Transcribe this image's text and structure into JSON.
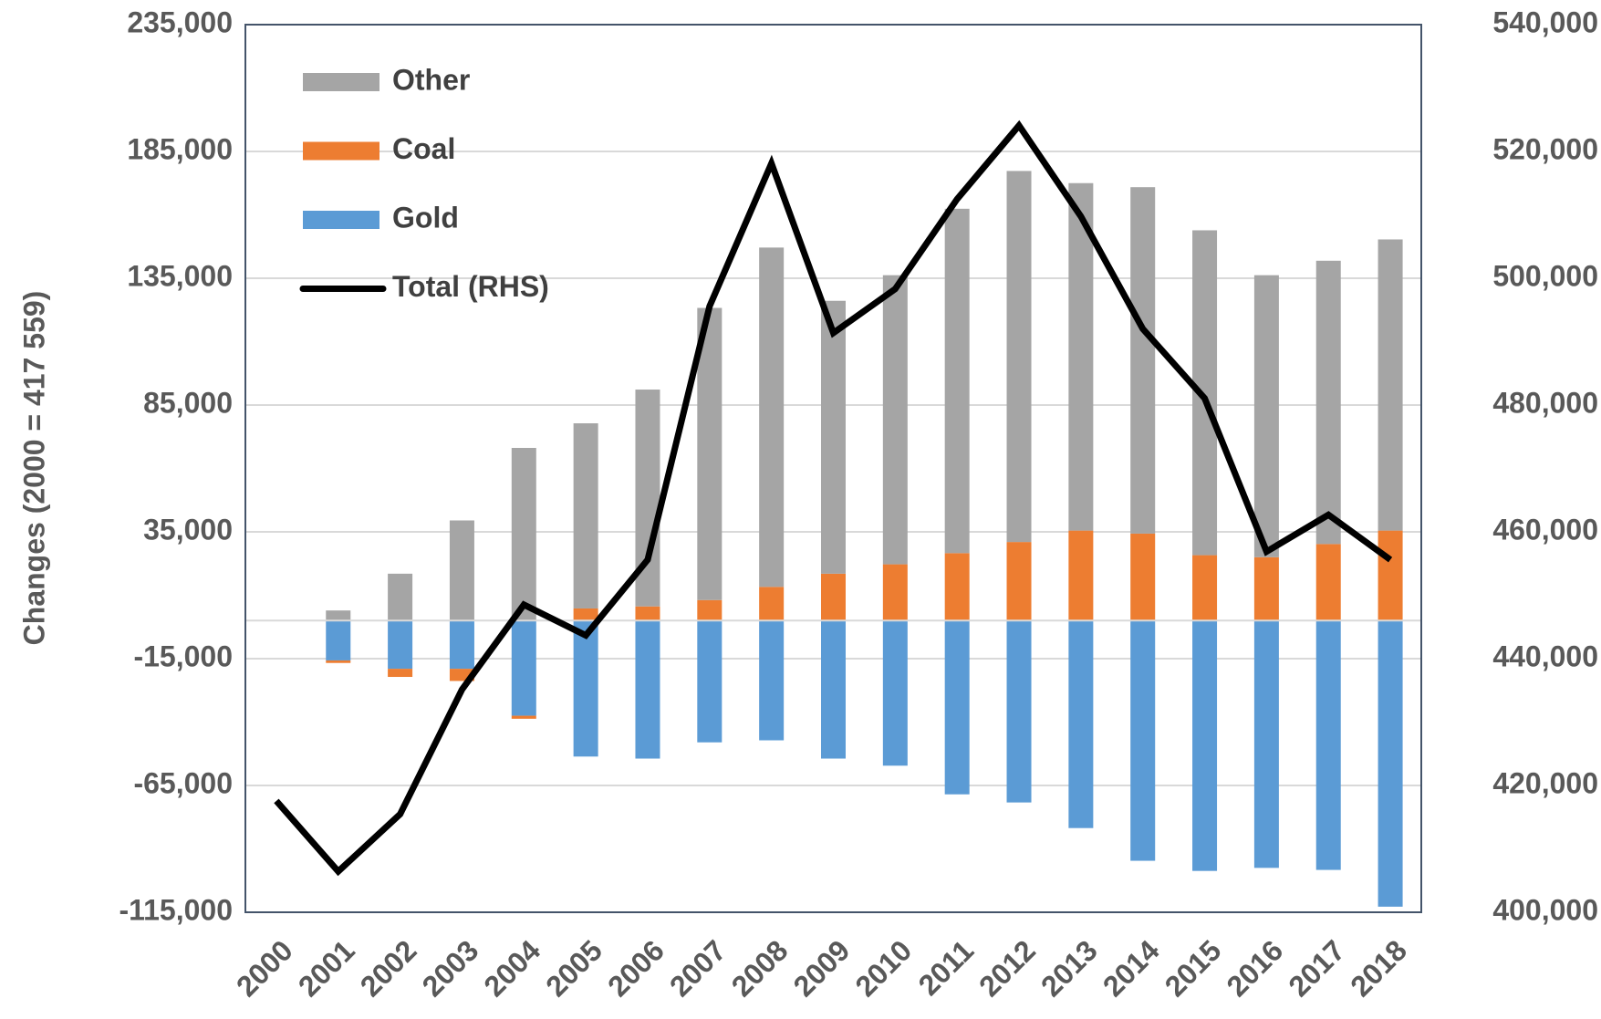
{
  "chart_data": {
    "type": "stacked_bar_line",
    "y_label": "Changes (2000 = 417 559)",
    "categories": [
      "2000",
      "2001",
      "2002",
      "2003",
      "2004",
      "2005",
      "2006",
      "2007",
      "2008",
      "2009",
      "2010",
      "2011",
      "2012",
      "2013",
      "2014",
      "2015",
      "2016",
      "2017",
      "2018"
    ],
    "series": [
      {
        "name": "Other",
        "color": "#a5a5a5",
        "type": "bar",
        "values": [
          0,
          4000,
          18500,
          39500,
          68100,
          73000,
          85500,
          115200,
          133800,
          107600,
          114000,
          135800,
          146300,
          137000,
          136600,
          128100,
          111200,
          111700,
          114800
        ]
      },
      {
        "name": "Coal",
        "color": "#ed7d31",
        "type": "bar",
        "values": [
          0,
          -1000,
          -3200,
          -4800,
          -1200,
          4800,
          5600,
          8100,
          13300,
          18500,
          22200,
          26600,
          31000,
          35500,
          34300,
          25800,
          25000,
          30200,
          35500
        ]
      },
      {
        "name": "Gold",
        "color": "#5b9bd5",
        "type": "bar",
        "values": [
          0,
          -15700,
          -19000,
          -19000,
          -37500,
          -53600,
          -54400,
          -48000,
          -47200,
          -54400,
          -57200,
          -68500,
          -71700,
          -81800,
          -94700,
          -98700,
          -97500,
          -98300,
          -112800
        ]
      },
      {
        "name": "Total (RHS)",
        "color": "#000000",
        "type": "line",
        "axis": "y2",
        "values": [
          417559,
          406446,
          415470,
          435130,
          448510,
          443670,
          455600,
          495570,
          518120,
          491370,
          498310,
          512490,
          524090,
          509750,
          492020,
          481060,
          456890,
          462690,
          455600
        ]
      }
    ],
    "ylim": [
      -115000,
      235000
    ],
    "yticks": [
      {
        "value": -115000,
        "label": "-115,000"
      },
      {
        "value": -65000,
        "label": "-65,000"
      },
      {
        "value": -15000,
        "label": "-15,000"
      },
      {
        "value": 35000,
        "label": "35,000"
      },
      {
        "value": 85000,
        "label": "85,000"
      },
      {
        "value": 135000,
        "label": "135,000"
      },
      {
        "value": 185000,
        "label": "185,000"
      },
      {
        "value": 235000,
        "label": "235,000"
      }
    ],
    "y2lim": [
      400000,
      540000
    ],
    "y2ticks": [
      {
        "value": 400000,
        "label": "400,000"
      },
      {
        "value": 420000,
        "label": "420,000"
      },
      {
        "value": 440000,
        "label": "440,000"
      },
      {
        "value": 460000,
        "label": "460,000"
      },
      {
        "value": 480000,
        "label": "480,000"
      },
      {
        "value": 500000,
        "label": "500,000"
      },
      {
        "value": 520000,
        "label": "520,000"
      },
      {
        "value": 540000,
        "label": "540,000"
      }
    ],
    "grid": true,
    "legend": "upper left"
  }
}
